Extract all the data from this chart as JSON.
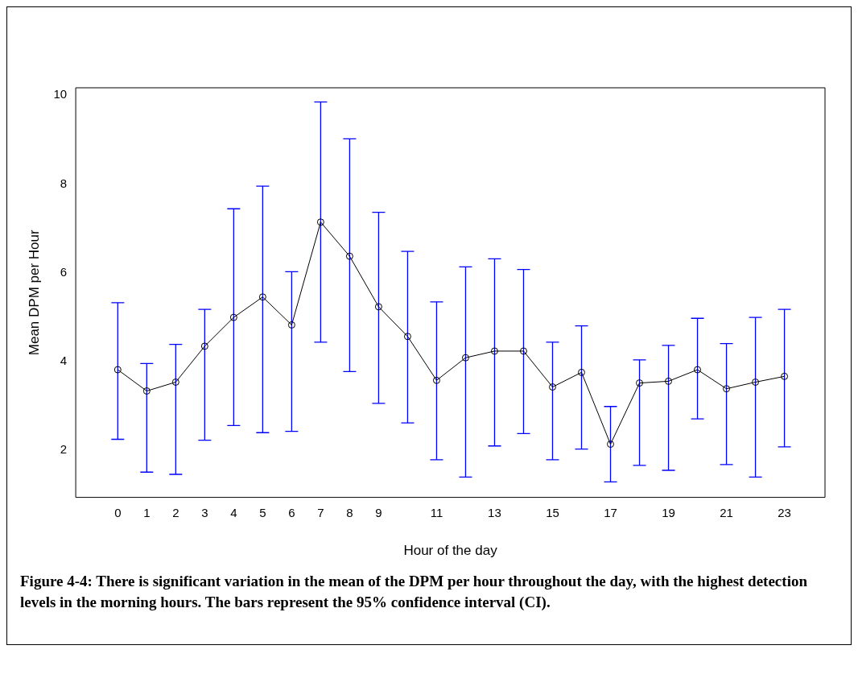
{
  "chart_data": {
    "type": "line",
    "xlabel": "Hour of the day",
    "ylabel": "Mean DPM per Hour",
    "x": [
      0,
      1,
      2,
      3,
      4,
      5,
      6,
      7,
      8,
      9,
      10,
      11,
      12,
      13,
      14,
      15,
      16,
      17,
      18,
      19,
      20,
      21,
      22,
      23
    ],
    "series": [
      {
        "color": "#000000",
        "values": [
          3.81,
          3.33,
          3.53,
          4.34,
          4.99,
          5.45,
          4.82,
          7.14,
          6.37,
          5.23,
          4.56,
          3.57,
          4.08,
          4.23,
          4.23,
          3.42,
          3.75,
          2.13,
          3.51,
          3.55,
          3.81,
          3.38,
          3.53,
          3.66
        ],
        "errors": [
          [
            2.24,
            5.32
          ],
          [
            1.5,
            3.95
          ],
          [
            1.45,
            4.38
          ],
          [
            2.22,
            5.17
          ],
          [
            2.55,
            7.44
          ],
          [
            2.39,
            7.95
          ],
          [
            2.42,
            6.02
          ],
          [
            4.43,
            9.85
          ],
          [
            3.77,
            9.02
          ],
          [
            3.05,
            7.36
          ],
          [
            2.61,
            6.48
          ],
          [
            1.78,
            5.34
          ],
          [
            1.39,
            6.13
          ],
          [
            2.09,
            6.31
          ],
          [
            2.37,
            6.07
          ],
          [
            1.78,
            4.43
          ],
          [
            2.02,
            4.8
          ],
          [
            1.28,
            2.98
          ],
          [
            1.65,
            4.03
          ],
          [
            1.54,
            4.36
          ],
          [
            2.7,
            4.97
          ],
          [
            1.67,
            4.4
          ],
          [
            1.39,
            4.99
          ],
          [
            2.07,
            5.17
          ]
        ]
      }
    ],
    "xlim": [
      -1.45,
      24.4
    ],
    "xticks": [
      0,
      1,
      2,
      3,
      4,
      5,
      6,
      7,
      8,
      9,
      11,
      13,
      15,
      17,
      19,
      21,
      23
    ],
    "ylim": [
      0.93,
      10.17
    ],
    "yticks": [
      2,
      4,
      6,
      8,
      10
    ],
    "marker": "circle",
    "line_style": "solid",
    "grid": false,
    "legend": false,
    "annotations": [
      "Figure 4-4: There is significant variation in the mean of the DPM per hour throughout the day, with the highest detection levels in the morning hours. The bars represent the 95% confidence interval (CI)."
    ]
  }
}
